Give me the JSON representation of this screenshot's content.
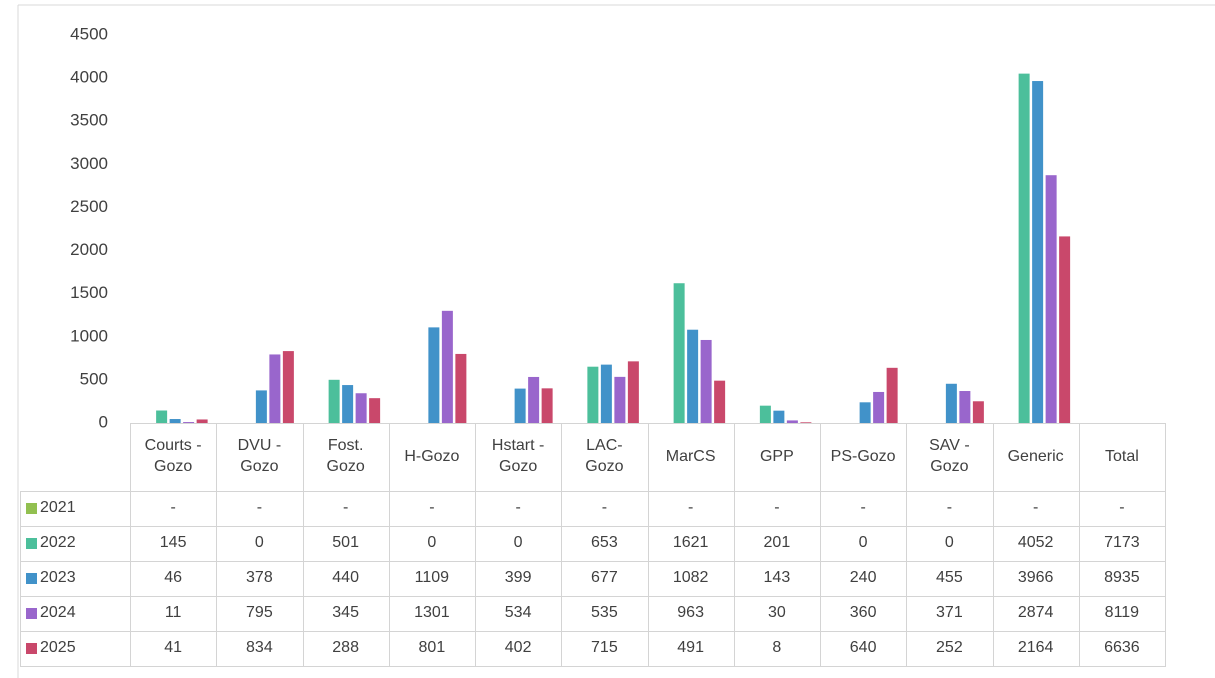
{
  "chart_data": {
    "type": "bar",
    "categories": [
      "Courts - Gozo",
      "DVU - Gozo",
      "Fost. Gozo",
      "H-Gozo",
      "Hstart - Gozo",
      "LAC-Gozo",
      "MarCS",
      "GPP",
      "PS-Gozo",
      "SAV - Gozo",
      "Generic"
    ],
    "total_label": "Total",
    "series": [
      {
        "name": "2021",
        "color": "#92c050",
        "values": [
          null,
          null,
          null,
          null,
          null,
          null,
          null,
          null,
          null,
          null,
          null
        ],
        "value_labels": [
          "-",
          "-",
          "-",
          "-",
          "-",
          "-",
          "-",
          "-",
          "-",
          "-",
          "-"
        ],
        "total": null,
        "total_label": "-"
      },
      {
        "name": "2022",
        "color": "#4cbf9b",
        "values": [
          145,
          0,
          501,
          0,
          0,
          653,
          1621,
          201,
          0,
          0,
          4052
        ],
        "total": 7173
      },
      {
        "name": "2023",
        "color": "#4192c9",
        "values": [
          46,
          378,
          440,
          1109,
          399,
          677,
          1082,
          143,
          240,
          455,
          3966
        ],
        "total": 8935
      },
      {
        "name": "2024",
        "color": "#9966cc",
        "values": [
          11,
          795,
          345,
          1301,
          534,
          535,
          963,
          30,
          360,
          371,
          2874
        ],
        "total": 8119
      },
      {
        "name": "2025",
        "color": "#c9486b",
        "values": [
          41,
          834,
          288,
          801,
          402,
          715,
          491,
          8,
          640,
          252,
          2164
        ],
        "total": 6636
      }
    ],
    "ylim": [
      0,
      4500
    ],
    "yticks": [
      0,
      500,
      1000,
      1500,
      2000,
      2500,
      3000,
      3500,
      4000,
      4500
    ],
    "grid": false
  }
}
